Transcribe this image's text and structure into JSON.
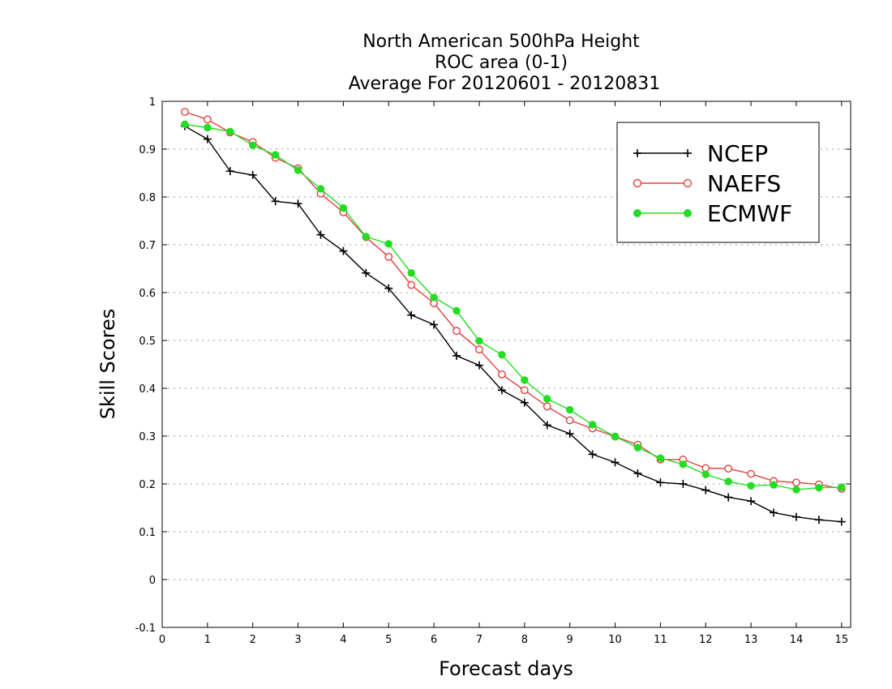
{
  "chart_data": {
    "type": "line",
    "title_lines": [
      "North American 500hPa Height",
      "ROC area (0-1)",
      "Average For 20120601 - 20120831"
    ],
    "xlabel": "Forecast days",
    "ylabel": "Skill Scores",
    "xlim": [
      0,
      15.2
    ],
    "ylim": [
      -0.1,
      1
    ],
    "xticks": [
      0,
      1,
      2,
      3,
      4,
      5,
      6,
      7,
      8,
      9,
      10,
      11,
      12,
      13,
      14,
      15
    ],
    "xtick_labels": [
      "0",
      "1",
      "2",
      "3",
      "4",
      "5",
      "6",
      "7",
      "8",
      "9",
      "10",
      "11",
      "12",
      "13",
      "14",
      "15"
    ],
    "yticks": [
      -0.1,
      0,
      0.1,
      0.2,
      0.3,
      0.4,
      0.5,
      0.6,
      0.7,
      0.8,
      0.9,
      1
    ],
    "ytick_labels": [
      "-0.1",
      "0",
      "0.1",
      "0.2",
      "0.3",
      "0.4",
      "0.5",
      "0.6",
      "0.7",
      "0.8",
      "0.9",
      "1"
    ],
    "grid": "horizontal-dotted",
    "legend_position": "top-right",
    "x": [
      0.5,
      1,
      1.5,
      2,
      2.5,
      3,
      3.5,
      4,
      4.5,
      5,
      5.5,
      6,
      6.5,
      7,
      7.5,
      8,
      8.5,
      9,
      9.5,
      10,
      10.5,
      11,
      11.5,
      12,
      12.5,
      13,
      13.5,
      14,
      14.5,
      15
    ],
    "series": [
      {
        "name": "NCEP",
        "color": "#000000",
        "marker": "plus",
        "values": [
          0.948,
          0.921,
          0.854,
          0.846,
          0.791,
          0.786,
          0.721,
          0.687,
          0.641,
          0.609,
          0.553,
          0.533,
          0.468,
          0.448,
          0.396,
          0.37,
          0.323,
          0.305,
          0.262,
          0.245,
          0.222,
          0.203,
          0.2,
          0.187,
          0.172,
          0.164,
          0.14,
          0.131,
          0.125,
          0.121
        ]
      },
      {
        "name": "NAEFS",
        "color": "#e04040",
        "marker": "open-circle",
        "values": [
          0.978,
          0.962,
          0.935,
          0.915,
          0.882,
          0.86,
          0.807,
          0.768,
          0.716,
          0.675,
          0.616,
          0.578,
          0.52,
          0.481,
          0.429,
          0.396,
          0.362,
          0.333,
          0.316,
          0.299,
          0.282,
          0.251,
          0.251,
          0.233,
          0.232,
          0.221,
          0.206,
          0.203,
          0.199,
          0.19
        ]
      },
      {
        "name": "ECMWF",
        "color": "#22dd22",
        "marker": "filled-circle",
        "values": [
          0.952,
          0.945,
          0.937,
          0.908,
          0.888,
          0.856,
          0.817,
          0.777,
          0.717,
          0.702,
          0.641,
          0.59,
          0.562,
          0.499,
          0.47,
          0.417,
          0.378,
          0.355,
          0.324,
          0.299,
          0.276,
          0.254,
          0.241,
          0.22,
          0.205,
          0.196,
          0.198,
          0.188,
          0.192,
          0.193
        ]
      }
    ]
  }
}
